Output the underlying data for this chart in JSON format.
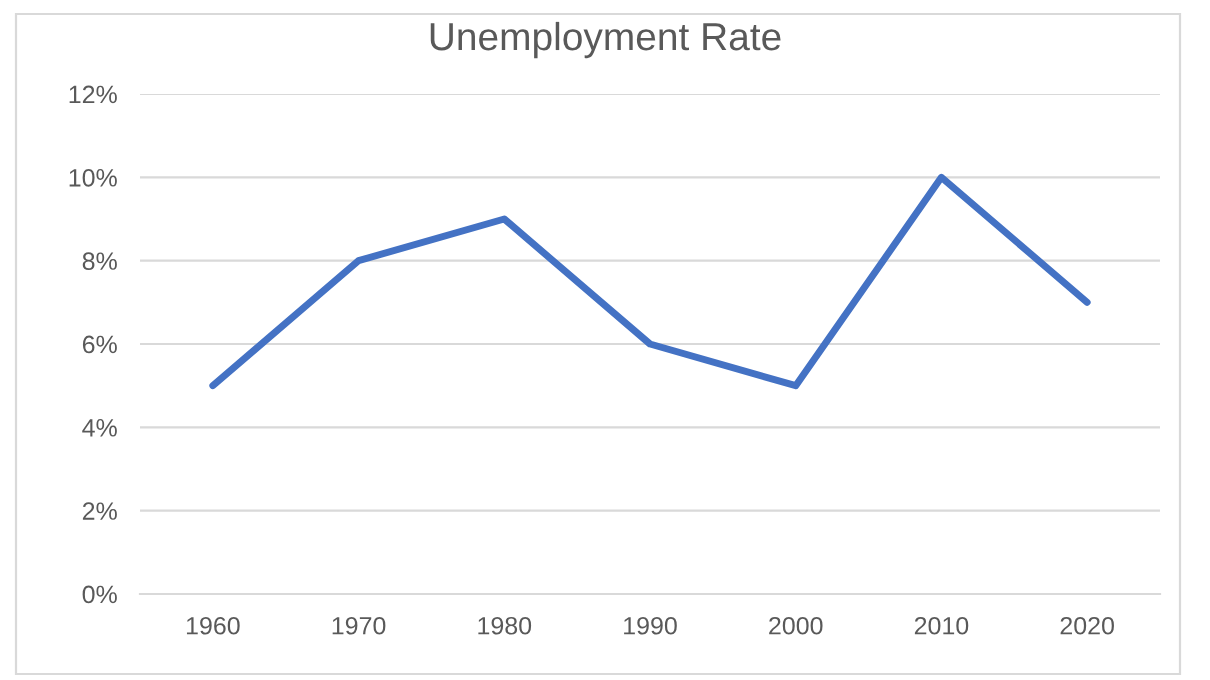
{
  "chart_data": {
    "type": "line",
    "title": "Unemployment Rate",
    "categories": [
      "1960",
      "1970",
      "1980",
      "1990",
      "2000",
      "2010",
      "2020"
    ],
    "series": [
      {
        "color": "#4472c4",
        "values": [
          5,
          8,
          9,
          6,
          5,
          10,
          7
        ]
      }
    ],
    "ylim": [
      0,
      12
    ],
    "yticks": [
      {
        "value": 0,
        "label": "0%"
      },
      {
        "value": 2,
        "label": "2%"
      },
      {
        "value": 4,
        "label": "4%"
      },
      {
        "value": 6,
        "label": "6%"
      },
      {
        "value": 8,
        "label": "8%"
      },
      {
        "value": 10,
        "label": "10%"
      },
      {
        "value": 12,
        "label": "12%"
      }
    ],
    "grid": "y",
    "marker": "none",
    "line_style": "solid"
  }
}
